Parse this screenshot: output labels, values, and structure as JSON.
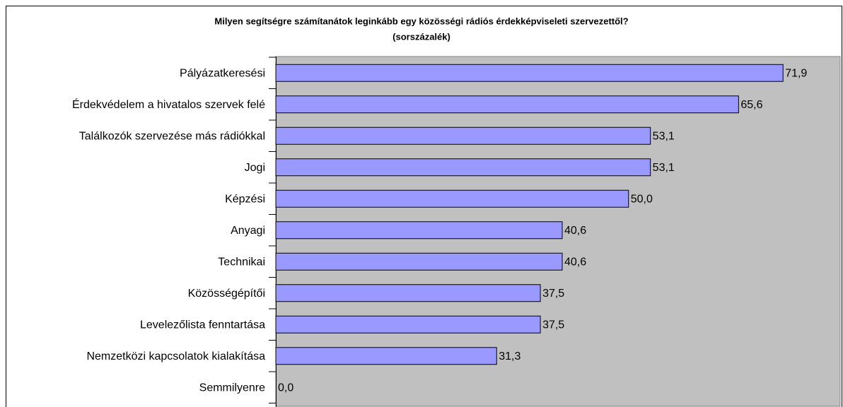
{
  "chart_data": {
    "type": "bar",
    "orientation": "horizontal",
    "title": "Milyen segítségre számítanátok leginkább egy közösségi rádiós érdekképviseleti szervezettől?",
    "subtitle": "(sorszázalék)",
    "categories": [
      "Pályázatkeresési",
      "Érdekvédelem a hivatalos szervek felé",
      "Találkozók szervezése más rádiókkal",
      "Jogi",
      "Képzési",
      "Anyagi",
      "Technikai",
      "Közösségépítői",
      "Levelezőlista fenntartása",
      "Nemzetközi kapcsolatok kialakítása",
      "Semmilyenre"
    ],
    "values": [
      71.9,
      65.6,
      53.1,
      53.1,
      50.0,
      40.6,
      40.6,
      37.5,
      37.5,
      31.3,
      0.0
    ],
    "value_labels": [
      "71,9",
      "65,6",
      "53,1",
      "53,1",
      "50,0",
      "40,6",
      "40,6",
      "37,5",
      "37,5",
      "31,3",
      "0,0"
    ],
    "color": "#9999ff",
    "xlim": [
      0,
      80
    ]
  }
}
